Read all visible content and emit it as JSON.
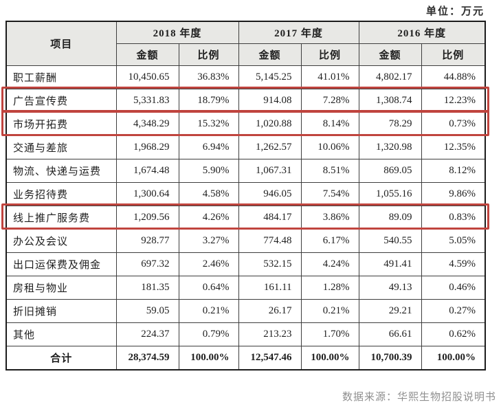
{
  "unit_label": "单位：万元",
  "source_label": "数据来源：华熙生物招股说明书",
  "colors": {
    "highlight_red": "#c0443e",
    "header_bg": "#e8e8e5"
  },
  "table": {
    "item_header": "项目",
    "amount_header": "金额",
    "ratio_header": "比例",
    "year_groups": [
      "2018 年度",
      "2017 年度",
      "2016 年度"
    ],
    "rows": [
      {
        "item": "职工薪酬",
        "highlighted": false,
        "values": [
          "10,450.65",
          "36.83%",
          "5,145.25",
          "41.01%",
          "4,802.17",
          "44.88%"
        ]
      },
      {
        "item": "广告宣传费",
        "highlighted": true,
        "values": [
          "5,331.83",
          "18.79%",
          "914.08",
          "7.28%",
          "1,308.74",
          "12.23%"
        ]
      },
      {
        "item": "市场开拓费",
        "highlighted": true,
        "values": [
          "4,348.29",
          "15.32%",
          "1,020.88",
          "8.14%",
          "78.29",
          "0.73%"
        ]
      },
      {
        "item": "交通与差旅",
        "highlighted": false,
        "values": [
          "1,968.29",
          "6.94%",
          "1,262.57",
          "10.06%",
          "1,320.98",
          "12.35%"
        ]
      },
      {
        "item": "物流、快递与运费",
        "highlighted": false,
        "values": [
          "1,674.48",
          "5.90%",
          "1,067.31",
          "8.51%",
          "869.05",
          "8.12%"
        ]
      },
      {
        "item": "业务招待费",
        "highlighted": false,
        "values": [
          "1,300.64",
          "4.58%",
          "946.05",
          "7.54%",
          "1,055.16",
          "9.86%"
        ]
      },
      {
        "item": "线上推广服务费",
        "highlighted": true,
        "values": [
          "1,209.56",
          "4.26%",
          "484.17",
          "3.86%",
          "89.09",
          "0.83%"
        ]
      },
      {
        "item": "办公及会议",
        "highlighted": false,
        "values": [
          "928.77",
          "3.27%",
          "774.48",
          "6.17%",
          "540.55",
          "5.05%"
        ]
      },
      {
        "item": "出口运保费及佣金",
        "highlighted": false,
        "values": [
          "697.32",
          "2.46%",
          "532.15",
          "4.24%",
          "491.41",
          "4.59%"
        ]
      },
      {
        "item": "房租与物业",
        "highlighted": false,
        "values": [
          "181.35",
          "0.64%",
          "161.11",
          "1.28%",
          "49.13",
          "0.46%"
        ]
      },
      {
        "item": "折旧摊销",
        "highlighted": false,
        "values": [
          "59.05",
          "0.21%",
          "26.17",
          "0.21%",
          "29.21",
          "0.27%"
        ]
      },
      {
        "item": "其他",
        "highlighted": false,
        "values": [
          "224.37",
          "0.79%",
          "213.23",
          "1.70%",
          "66.61",
          "0.62%"
        ]
      }
    ],
    "total": {
      "item": "合计",
      "values": [
        "28,374.59",
        "100.00%",
        "12,547.46",
        "100.00%",
        "10,700.39",
        "100.00%"
      ]
    }
  }
}
